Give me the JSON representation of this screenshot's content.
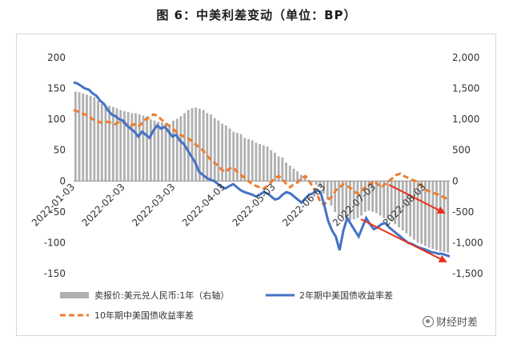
{
  "chart_data": {
    "type": "bar+line",
    "title": "图 6：中美利差变动（单位：BP）",
    "y_left": {
      "lim": [
        -150,
        200
      ],
      "ticks": [
        "200",
        "150",
        "100",
        "50",
        "0",
        "-50",
        "-100",
        "-150"
      ]
    },
    "y_right": {
      "lim": [
        -1500,
        2000
      ],
      "ticks": [
        "2,000",
        "1,500",
        "1,000",
        "500",
        "0",
        "-500",
        "-1,000",
        "-1,500"
      ]
    },
    "x_ticks": [
      "2022-01-03",
      "2022-02-03",
      "2022-03-03",
      "2022-04-03",
      "2022-05-03",
      "2022-06-03",
      "2022-07-03",
      "2022-08-03"
    ],
    "legend": {
      "bar": "卖报价:美元兑人民币:1年（右轴）",
      "line2y": "2年期中美国债收益率差",
      "line10y": "10年期中美国债收益率差"
    },
    "colors": {
      "bar": "#b0b0b0",
      "line2y": "#4472c4",
      "line10y": "#ed7d31",
      "arrow": "#e8301c"
    },
    "series_bar_right": [
      1450,
      1440,
      1420,
      1400,
      1380,
      1360,
      1300,
      1250,
      1230,
      1220,
      1200,
      1180,
      1150,
      1130,
      1120,
      1100,
      1100,
      1080,
      1060,
      1050,
      1000,
      980,
      960,
      950,
      940,
      920,
      980,
      1010,
      1050,
      1100,
      1150,
      1180,
      1190,
      1170,
      1150,
      1100,
      1080,
      1020,
      980,
      930,
      900,
      850,
      800,
      780,
      760,
      700,
      680,
      660,
      620,
      600,
      580,
      560,
      500,
      460,
      400,
      380,
      300,
      250,
      200,
      160,
      100,
      60,
      20,
      -20,
      -60,
      -100,
      -200,
      -300,
      -400,
      -500,
      -550,
      -600,
      -620,
      -640,
      -620,
      -600,
      -560,
      -500,
      -480,
      -500,
      -520,
      -560,
      -600,
      -620,
      -650,
      -700,
      -750,
      -800,
      -850,
      -900,
      -950,
      -1000,
      -1020,
      -1050,
      -1080,
      -1100,
      -1120,
      -1140,
      -1150,
      -1160
    ],
    "series_line2y": [
      160,
      158,
      154,
      150,
      148,
      142,
      138,
      130,
      125,
      115,
      108,
      105,
      100,
      98,
      90,
      85,
      80,
      72,
      80,
      75,
      70,
      82,
      90,
      85,
      88,
      80,
      72,
      75,
      65,
      60,
      50,
      40,
      30,
      15,
      10,
      5,
      2,
      0,
      -5,
      -10,
      -12,
      -8,
      -5,
      -10,
      -15,
      -18,
      -20,
      -22,
      -25,
      -22,
      -18,
      -20,
      -25,
      -30,
      -28,
      -22,
      -18,
      -20,
      -25,
      -30,
      -35,
      -28,
      -22,
      -20,
      -15,
      -18,
      -40,
      -65,
      -80,
      -90,
      -112,
      -80,
      -60,
      -70,
      -80,
      -90,
      -75,
      -60,
      -70,
      -78,
      -75,
      -70,
      -68,
      -75,
      -80,
      -85,
      -90,
      -95,
      -100,
      -102,
      -105,
      -108,
      -110,
      -112,
      -115,
      -116,
      -118,
      -118,
      -120,
      -122
    ],
    "series_line10y": [
      115,
      113,
      110,
      108,
      105,
      100,
      98,
      95,
      95,
      96,
      94,
      92,
      96,
      95,
      92,
      90,
      92,
      88,
      94,
      100,
      103,
      108,
      106,
      100,
      95,
      90,
      85,
      80,
      75,
      72,
      70,
      65,
      60,
      55,
      50,
      42,
      35,
      30,
      25,
      18,
      15,
      20,
      22,
      15,
      10,
      5,
      0,
      -5,
      -8,
      -10,
      -12,
      -8,
      -2,
      5,
      8,
      2,
      -5,
      -10,
      -5,
      -2,
      5,
      8,
      0,
      -10,
      -20,
      -35,
      -38,
      -30,
      -25,
      -15,
      -10,
      -5,
      -8,
      -12,
      -18,
      -20,
      -15,
      -8,
      -5,
      0,
      -5,
      -10,
      -5,
      0,
      5,
      10,
      12,
      8,
      5,
      2,
      0,
      -5,
      -10,
      -15,
      -18,
      -20,
      -22,
      -25,
      -28,
      -30
    ]
  },
  "watermark": "财经时差"
}
